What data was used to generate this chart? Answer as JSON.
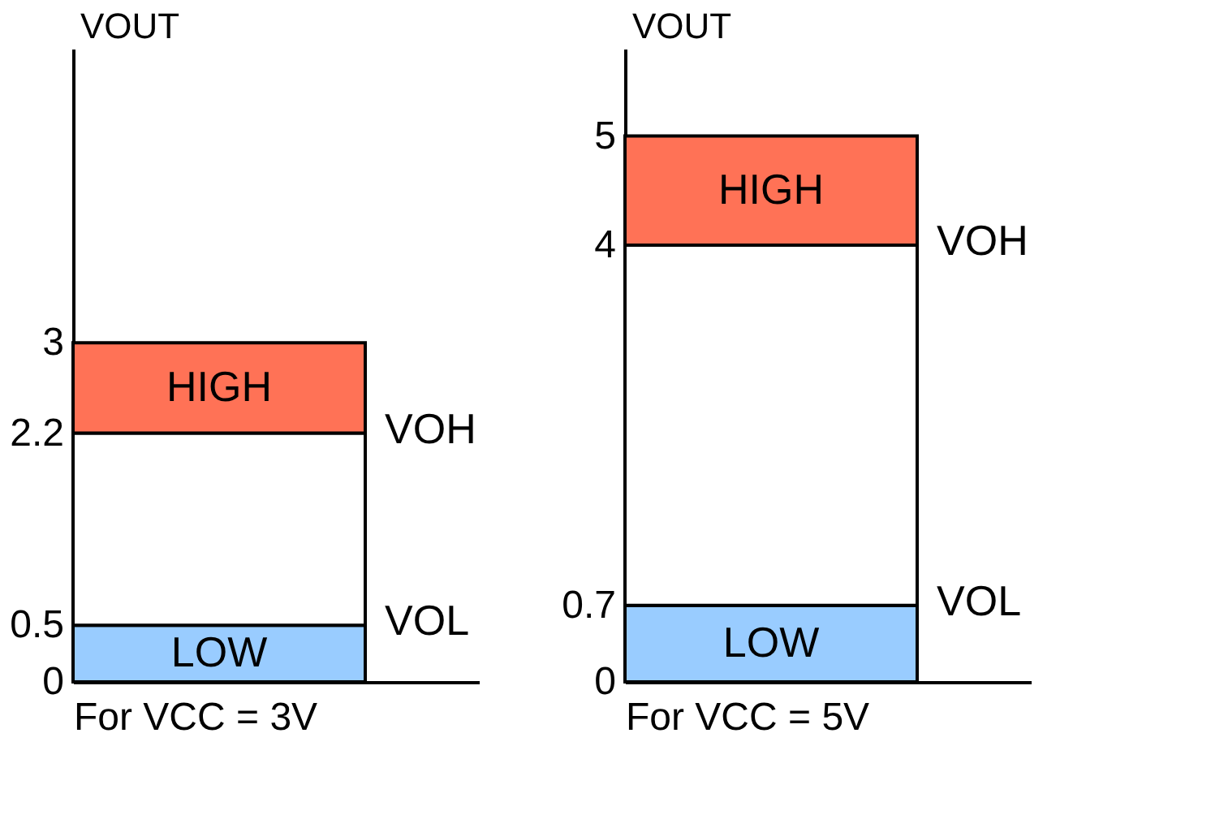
{
  "chart_data": [
    {
      "type": "bar",
      "ylabel": "VOUT",
      "xlabel": "For VCC = 3V",
      "categories": [
        null
      ],
      "ylim": [
        0,
        5.6
      ],
      "yticks": [
        0,
        0.5,
        2.2,
        3
      ],
      "grid": false,
      "tick_labels": "y",
      "series": [
        {
          "name": "LOW",
          "color": "#99ccff",
          "values": [
            0.5
          ],
          "base": [
            0
          ]
        },
        {
          "color": "#ffffff",
          "values": [
            1.7
          ],
          "base": [
            0.5
          ]
        },
        {
          "name": "HIGH",
          "color": "#ff7256",
          "values": [
            0.8
          ],
          "base": [
            2.2
          ]
        }
      ],
      "annotations": [
        "VOH",
        "VOL"
      ]
    },
    {
      "type": "bar",
      "ylabel": "VOUT",
      "xlabel": "For VCC = 5V",
      "categories": [
        null
      ],
      "ylim": [
        0,
        5.8
      ],
      "yticks": [
        0,
        0.7,
        4,
        5
      ],
      "grid": false,
      "tick_labels": "y",
      "series": [
        {
          "name": "LOW",
          "color": "#99ccff",
          "values": [
            0.7
          ],
          "base": [
            0
          ]
        },
        {
          "color": "#ffffff",
          "values": [
            3.3
          ],
          "base": [
            0.7
          ]
        },
        {
          "name": "HIGH",
          "color": "#ff7256",
          "values": [
            1.0
          ],
          "base": [
            4
          ]
        }
      ],
      "annotations": [
        "VOH",
        "VOL"
      ]
    }
  ]
}
